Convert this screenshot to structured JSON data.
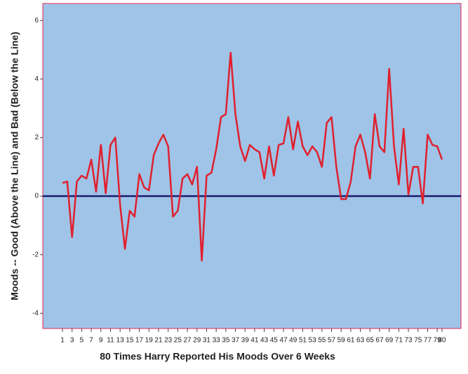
{
  "chart_data": {
    "type": "line",
    "x_label": "80 Times Harry Reported His Moods Over 6 Weeks",
    "y_label": "Moods -- Good (Above the Line) and Bad (Below the Line)",
    "categories": [
      1,
      null,
      3,
      null,
      5,
      null,
      7,
      null,
      9,
      null,
      11,
      null,
      13,
      null,
      15,
      null,
      17,
      null,
      19,
      null,
      21,
      null,
      23,
      null,
      25,
      null,
      27,
      null,
      29,
      null,
      31,
      null,
      33,
      null,
      35,
      null,
      37,
      null,
      39,
      null,
      41,
      null,
      43,
      null,
      45,
      null,
      47,
      null,
      49,
      null,
      51,
      null,
      53,
      null,
      55,
      null,
      57,
      null,
      59,
      null,
      61,
      null,
      63,
      null,
      65,
      null,
      67,
      null,
      69,
      null,
      71,
      null,
      73,
      null,
      75,
      null,
      77,
      null,
      79,
      80
    ],
    "series": [
      {
        "name": "Mood",
        "color": "#e0202e",
        "values": [
          0.45,
          0.5,
          -1.4,
          0.5,
          0.7,
          0.6,
          1.25,
          0.15,
          1.75,
          0.1,
          1.75,
          2.0,
          -0.3,
          -1.8,
          -0.5,
          -0.7,
          0.75,
          0.3,
          0.2,
          1.4,
          1.8,
          2.1,
          1.7,
          -0.7,
          -0.5,
          0.6,
          0.75,
          0.4,
          1.0,
          -2.2,
          0.7,
          0.8,
          1.6,
          2.7,
          2.8,
          4.9,
          2.8,
          1.7,
          1.2,
          1.75,
          1.6,
          1.5,
          0.6,
          1.7,
          0.7,
          1.75,
          1.8,
          2.7,
          1.6,
          2.55,
          1.7,
          1.4,
          1.7,
          1.5,
          1.0,
          2.5,
          2.7,
          1.0,
          -0.1,
          -0.1,
          0.5,
          1.7,
          2.1,
          1.5,
          0.6,
          2.8,
          1.7,
          1.5,
          4.35,
          1.7,
          0.4,
          2.3,
          0.05,
          1.0,
          1.0,
          -0.25,
          2.1,
          1.75,
          1.7,
          1.25
        ]
      }
    ],
    "ylim": [
      -4.52,
      6.58
    ],
    "yticks": [
      -4,
      -2,
      0,
      2,
      4,
      6
    ],
    "reference_line": 0,
    "reference_color": "#1a1a6e",
    "background": "#9fc4e8",
    "frame_color": "#e8274b"
  }
}
